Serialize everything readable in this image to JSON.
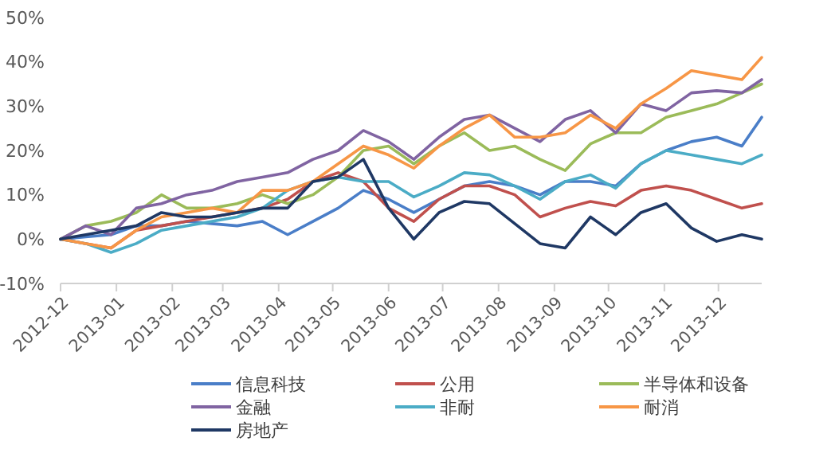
{
  "chart_data": {
    "type": "line",
    "x": [
      "2012-12-01",
      "2012-12-15",
      "2012-12-29",
      "2013-01-12",
      "2013-01-26",
      "2013-02-09",
      "2013-02-23",
      "2013-03-09",
      "2013-03-23",
      "2013-04-06",
      "2013-04-20",
      "2013-05-04",
      "2013-05-18",
      "2013-06-01",
      "2013-06-15",
      "2013-06-29",
      "2013-07-13",
      "2013-07-27",
      "2013-08-10",
      "2013-08-24",
      "2013-09-07",
      "2013-09-21",
      "2013-10-05",
      "2013-10-19",
      "2013-11-02",
      "2013-11-16",
      "2013-11-30",
      "2013-12-14",
      "2013-12-25"
    ],
    "series": [
      {
        "name": "信息科技",
        "color": "#4a7ec8",
        "values": [
          0,
          0.5,
          1,
          3,
          3,
          4,
          3.5,
          3,
          4,
          1,
          4,
          7,
          11,
          9,
          6,
          9,
          12,
          13,
          12,
          10,
          13,
          13,
          12,
          17,
          20,
          22,
          23,
          21,
          27.5
        ]
      },
      {
        "name": "公用",
        "color": "#c0504d",
        "values": [
          0,
          -1,
          -2,
          2,
          3,
          4,
          5,
          6,
          7,
          9,
          13,
          15,
          13,
          7,
          4,
          9,
          12,
          12,
          10,
          5,
          7,
          8.5,
          7.5,
          11,
          12,
          11,
          9,
          7,
          8
        ]
      },
      {
        "name": "半导体和设备",
        "color": "#9bbb59",
        "values": [
          0,
          3,
          4,
          6,
          10,
          7,
          7,
          8,
          10,
          8,
          10,
          14,
          20,
          21,
          17,
          21,
          24,
          20,
          21,
          18,
          15.5,
          21.5,
          24,
          24,
          27.5,
          29,
          30.5,
          33,
          35
        ]
      },
      {
        "name": "金融",
        "color": "#8064a2",
        "values": [
          0,
          3,
          1,
          7,
          8,
          10,
          11,
          13,
          14,
          15,
          18,
          20,
          24.5,
          22,
          18,
          23,
          27,
          28,
          25,
          22,
          27,
          29,
          24,
          30.5,
          29,
          33,
          33.5,
          33,
          36
        ]
      },
      {
        "name": "非耐",
        "color": "#4bacc6",
        "values": [
          0,
          -1,
          -3,
          -1,
          2,
          3,
          4,
          5,
          7,
          11,
          13,
          14,
          13,
          13,
          9.5,
          12,
          15,
          14.5,
          12,
          9,
          13,
          14.5,
          11.5,
          17,
          20,
          19,
          18,
          17,
          19
        ]
      },
      {
        "name": "耐消",
        "color": "#f79646",
        "values": [
          0,
          -1,
          -2,
          2,
          5,
          6,
          7,
          6,
          11,
          11,
          13,
          17,
          21,
          19,
          16,
          21,
          25,
          28,
          23,
          23,
          24,
          28,
          25,
          30.5,
          34,
          38,
          37,
          36,
          41
        ]
      },
      {
        "name": "房地产",
        "color": "#1f3864",
        "values": [
          0,
          1,
          2,
          3,
          6,
          5,
          5,
          6,
          7,
          7,
          13,
          14,
          18,
          7,
          0,
          6,
          8.5,
          8,
          3.5,
          -1,
          -2,
          5,
          1,
          6,
          8,
          2.5,
          -0.5,
          1,
          0
        ]
      }
    ],
    "xlim": [
      "2012-12-01",
      "2013-12-25"
    ],
    "xticks": [
      "2012-12",
      "2013-01",
      "2013-02",
      "2013-03",
      "2013-04",
      "2013-05",
      "2013-06",
      "2013-07",
      "2013-08",
      "2013-09",
      "2013-10",
      "2013-11",
      "2013-12"
    ],
    "ylim": [
      -10,
      50
    ],
    "yticks": [
      {
        "value": -10,
        "label": "-10%"
      },
      {
        "value": 0,
        "label": "0%"
      },
      {
        "value": 10,
        "label": "10%"
      },
      {
        "value": 20,
        "label": "20%"
      },
      {
        "value": 30,
        "label": "30%"
      },
      {
        "value": 40,
        "label": "40%"
      },
      {
        "value": 50,
        "label": "50%"
      }
    ],
    "grid": false,
    "legend": "bottom"
  }
}
